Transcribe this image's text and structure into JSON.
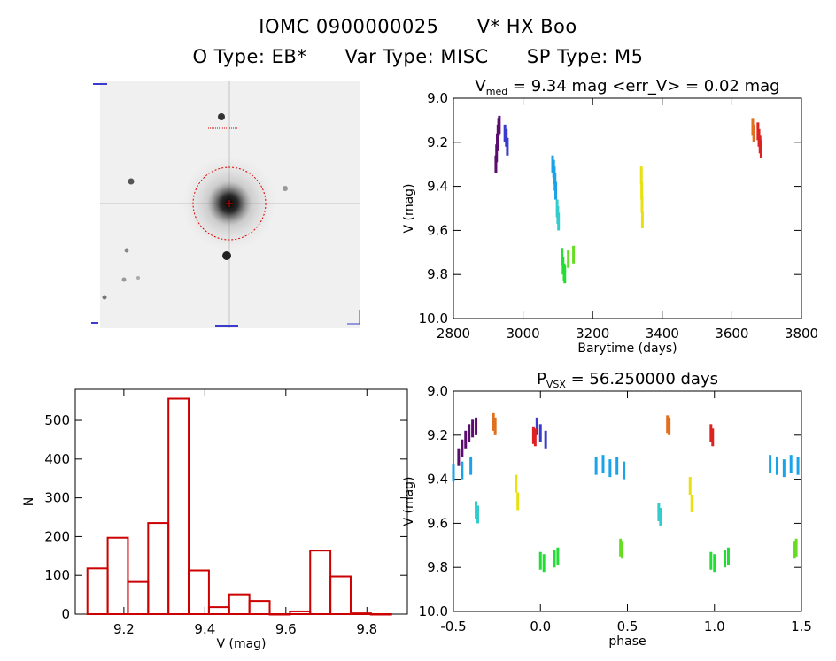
{
  "header": {
    "line1": [
      "IOMC 0900000025",
      "V* HX Boo"
    ],
    "line2": [
      "O Type: EB*",
      "Var Type: MISC",
      "SP Type: M5"
    ]
  },
  "colors": {
    "hist": "#cc0000",
    "circle": "#dd0000",
    "palette": [
      "#5a0d6e",
      "#6a1b9a",
      "#3b3bcc",
      "#1f6fe0",
      "#1aa3e8",
      "#33cccc",
      "#22dd33",
      "#66dd22",
      "#e8e010",
      "#ffcc00",
      "#e07020",
      "#dd2222"
    ]
  },
  "chart_data": [
    {
      "type": "image",
      "caption": "sky-cutout-finder-chart"
    },
    {
      "type": "scatter",
      "title": "Vmed = 9.34 mag <err_V> = 0.02 mag",
      "title_parts": {
        "base": "V",
        "sub": "med",
        "rest": " = 9.34 mag <err_V> = 0.02 mag"
      },
      "xlabel": "Barytime (days)",
      "ylabel": "V (mag)",
      "xlim": [
        2800,
        3800
      ],
      "ylim": [
        10.0,
        9.0
      ],
      "xticks": [
        2800,
        3000,
        3200,
        3400,
        3600,
        3800
      ],
      "yticks": [
        9.0,
        9.2,
        9.4,
        9.6,
        9.8,
        10.0
      ],
      "series": [
        {
          "x": [
            2922,
            2924,
            2926,
            2928,
            2930,
            2932
          ],
          "y": [
            9.3,
            9.25,
            9.2,
            9.16,
            9.13,
            9.12
          ],
          "color": "#5a0d6e"
        },
        {
          "x": [
            2948,
            2952,
            2955
          ],
          "y": [
            9.16,
            9.18,
            9.22
          ],
          "color": "#3b3bcc"
        },
        {
          "x": [
            3085,
            3088,
            3090,
            3092,
            3094
          ],
          "y": [
            9.3,
            9.32,
            9.35,
            9.38,
            9.42
          ],
          "color": "#1aa3e8"
        },
        {
          "x": [
            3098,
            3100,
            3102
          ],
          "y": [
            9.5,
            9.53,
            9.56
          ],
          "color": "#33cccc"
        },
        {
          "x": [
            3112,
            3115,
            3118,
            3120
          ],
          "y": [
            9.72,
            9.76,
            9.79,
            9.8
          ],
          "color": "#22dd33"
        },
        {
          "x": [
            3130,
            3145
          ],
          "y": [
            9.73,
            9.71
          ],
          "color": "#66dd22"
        },
        {
          "x": [
            3340,
            3341,
            3342,
            3343
          ],
          "y": [
            9.35,
            9.42,
            9.48,
            9.55
          ],
          "color": "#e8e010"
        },
        {
          "x": [
            3660,
            3663
          ],
          "y": [
            9.13,
            9.16
          ],
          "color": "#e07020"
        },
        {
          "x": [
            3675,
            3678,
            3681,
            3684
          ],
          "y": [
            9.15,
            9.18,
            9.21,
            9.23
          ],
          "color": "#dd2222"
        }
      ]
    },
    {
      "type": "bar",
      "xlabel": "V (mag)",
      "ylabel": "N",
      "xlim": [
        9.08,
        9.9
      ],
      "ylim": [
        0,
        580
      ],
      "xticks": [
        9.2,
        9.4,
        9.6,
        9.8
      ],
      "yticks": [
        0,
        100,
        200,
        300,
        400,
        500
      ],
      "bin_width": 0.05,
      "bin_starts": [
        9.11,
        9.16,
        9.21,
        9.26,
        9.31,
        9.36,
        9.41,
        9.46,
        9.51,
        9.56,
        9.61,
        9.66,
        9.71,
        9.76,
        9.81
      ],
      "values": [
        118,
        197,
        83,
        235,
        556,
        113,
        18,
        51,
        34,
        0,
        7,
        164,
        97,
        2,
        0
      ]
    },
    {
      "type": "scatter",
      "title": "PVSX = 56.250000 days",
      "title_parts": {
        "base": "P",
        "sub": "VSX",
        "rest": " = 56.250000 days"
      },
      "xlabel": "phase",
      "ylabel": "V (mag)",
      "xlim": [
        -0.5,
        1.5
      ],
      "ylim": [
        10.0,
        9.0
      ],
      "xticks": [
        -0.5,
        0.0,
        0.5,
        1.0,
        1.5
      ],
      "yticks": [
        9.0,
        9.2,
        9.4,
        9.6,
        9.8,
        10.0
      ],
      "series": [
        {
          "x": [
            -0.47,
            -0.45,
            -0.43,
            -0.41,
            -0.39,
            -0.37
          ],
          "y": [
            9.3,
            9.26,
            9.22,
            9.19,
            9.17,
            9.16
          ],
          "color": "#5a0d6e"
        },
        {
          "x": [
            -0.02,
            0.0,
            0.03
          ],
          "y": [
            9.16,
            9.19,
            9.22
          ],
          "color": "#3b3bcc"
        },
        {
          "x": [
            -0.5,
            -0.45,
            -0.4,
            0.32,
            0.36,
            0.4,
            0.44,
            0.48,
            1.32,
            1.36,
            1.4,
            1.44,
            1.48
          ],
          "y": [
            9.37,
            9.36,
            9.34,
            9.34,
            9.33,
            9.35,
            9.34,
            9.36,
            9.33,
            9.34,
            9.35,
            9.33,
            9.34
          ],
          "color": "#1aa3e8"
        },
        {
          "x": [
            -0.37,
            -0.36,
            0.68,
            0.69
          ],
          "y": [
            9.54,
            9.56,
            9.55,
            9.57
          ],
          "color": "#33cccc"
        },
        {
          "x": [
            0.0,
            0.02,
            0.08,
            0.1,
            0.98,
            1.0,
            1.06,
            1.08
          ],
          "y": [
            9.77,
            9.78,
            9.76,
            9.75,
            9.77,
            9.78,
            9.76,
            9.75
          ],
          "color": "#22dd33"
        },
        {
          "x": [
            0.46,
            0.47,
            1.46,
            1.47
          ],
          "y": [
            9.71,
            9.72,
            9.72,
            9.71
          ],
          "color": "#66dd22"
        },
        {
          "x": [
            -0.14,
            -0.13,
            0.86,
            0.87
          ],
          "y": [
            9.42,
            9.5,
            9.43,
            9.51
          ],
          "color": "#e8e010"
        },
        {
          "x": [
            -0.27,
            -0.26,
            0.73,
            0.74
          ],
          "y": [
            9.14,
            9.16,
            9.15,
            9.16
          ],
          "color": "#e07020"
        },
        {
          "x": [
            -0.04,
            -0.03,
            0.98,
            0.99
          ],
          "y": [
            9.2,
            9.21,
            9.19,
            9.21
          ],
          "color": "#dd2222"
        }
      ]
    }
  ]
}
